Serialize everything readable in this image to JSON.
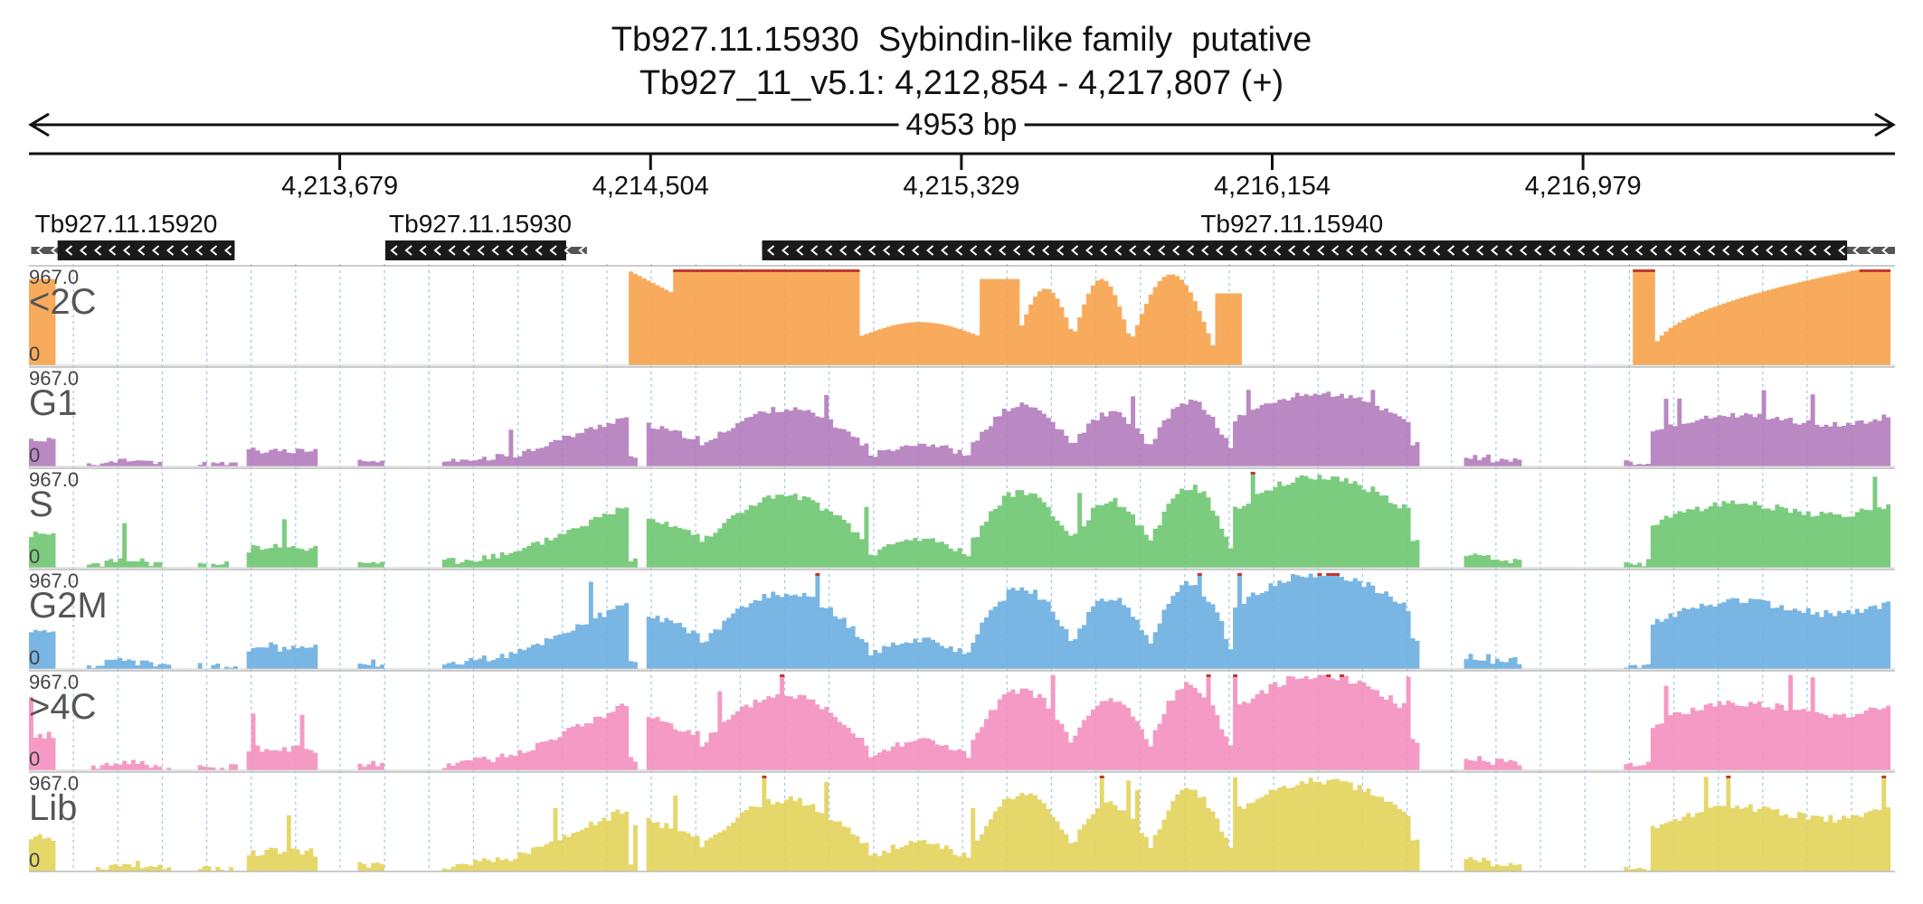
{
  "title": {
    "line1": "Tb927.11.15930  Sybindin-like family  putative",
    "line2": "Tb927_11_v5.1: 4,212,854 - 4,217,807 (+)"
  },
  "span": {
    "label": "4953 bp"
  },
  "region": {
    "start": 4212854,
    "end": 4217807
  },
  "ruler": {
    "ticks": [
      {
        "pos": 4213679,
        "label": "4,213,679"
      },
      {
        "pos": 4214504,
        "label": "4,214,504"
      },
      {
        "pos": 4215329,
        "label": "4,215,329"
      },
      {
        "pos": 4216154,
        "label": "4,216,154"
      },
      {
        "pos": 4216979,
        "label": "4,216,979"
      }
    ]
  },
  "genes": [
    {
      "id": "Tb927.11.15920",
      "start": 4212860,
      "end": 4213400,
      "cds_start": 4212930,
      "cds_end": 4213400,
      "strand": "-"
    },
    {
      "id": "Tb927.11.15930",
      "start": 4213800,
      "end": 4214335,
      "cds_start": 4213800,
      "cds_end": 4214280,
      "strand": "-"
    },
    {
      "id": "Tb927.11.15940",
      "start": 4214800,
      "end": 4217807,
      "cds_start": 4214800,
      "cds_end": 4217680,
      "strand": "-"
    }
  ],
  "tracks": [
    {
      "name": "<2C",
      "max": "967.0",
      "zero": "0",
      "color": "#f7a24a",
      "profile": "c2"
    },
    {
      "name": "G1",
      "max": "967.0",
      "zero": "0",
      "color": "#b27bbd",
      "profile": "g1"
    },
    {
      "name": "S",
      "max": "967.0",
      "zero": "0",
      "color": "#6ec771",
      "profile": "s"
    },
    {
      "name": "G2M",
      "max": "967.0",
      "zero": "0",
      "color": "#6aaee0",
      "profile": "g2m"
    },
    {
      "name": ">4C",
      "max": "967.0",
      "zero": "0",
      "color": "#f38fbe",
      "profile": "g4c"
    },
    {
      "name": "Lib",
      "max": "967.0",
      "zero": "0",
      "color": "#e2d35a",
      "profile": "lib"
    }
  ],
  "colors": {
    "gene_fill": "#1a1a1a",
    "utr_fill": "#555555",
    "clip_marker": "#c0392b",
    "grid": "#6aaee0",
    "track_border": "#bbbbbb"
  }
}
